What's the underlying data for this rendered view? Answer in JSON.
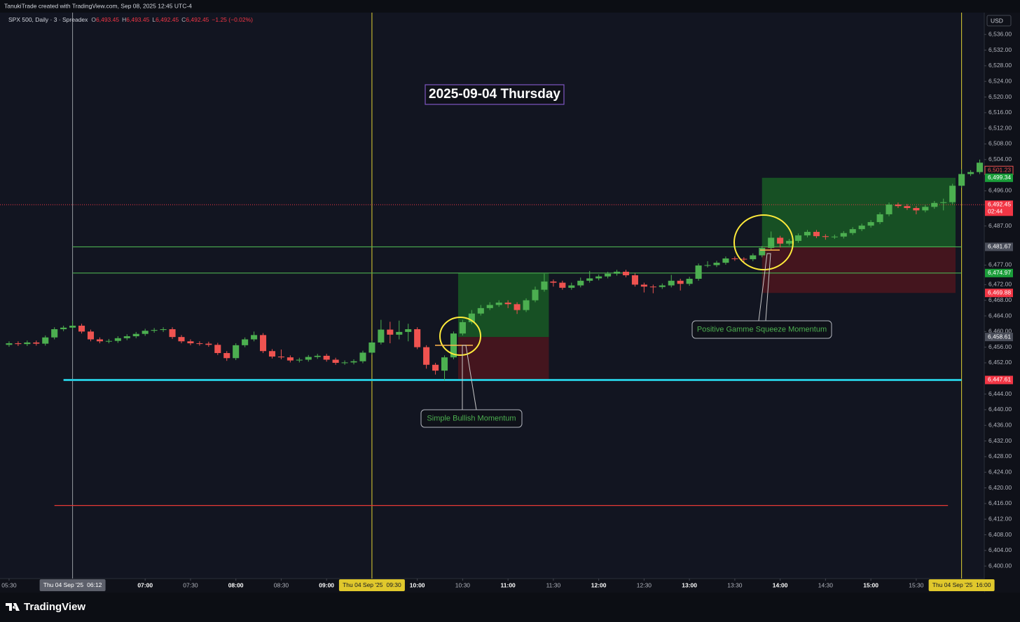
{
  "header": {
    "credit": "TanukiTrade created with TradingView.com, Sep 08, 2025 12:45 UTC-4"
  },
  "footer": {
    "brand": "TradingView"
  },
  "chart_data": {
    "type": "candlestick",
    "title": "2025-09-04 Thursday",
    "legend": {
      "symbol": "SPX 500, Daily · 3 · Spreadex",
      "ohlc": [
        {
          "key": "O",
          "value": "6,493.45"
        },
        {
          "key": "H",
          "value": "6,493.45"
        },
        {
          "key": "L",
          "value": "6,492.45"
        },
        {
          "key": "C",
          "value": "6,492.45"
        }
      ],
      "change": "−1.25 (−0.02%)"
    },
    "currency": "USD",
    "up_color": "#4caf50",
    "down_color": "#ef5350",
    "grid": false,
    "xlim": [
      "05:24",
      "16:15"
    ],
    "xticks": [
      "05:30",
      "07:00",
      "07:30",
      "08:00",
      "08:30",
      "09:00",
      "10:00",
      "10:30",
      "11:00",
      "11:30",
      "12:00",
      "12:30",
      "13:00",
      "13:30",
      "14:00",
      "14:30",
      "15:00",
      "15:30"
    ],
    "ylim": [
      6396.8,
      6541.6
    ],
    "yticks": [
      {
        "value": 6536,
        "label": "6,536.00"
      },
      {
        "value": 6532,
        "label": "6,532.00"
      },
      {
        "value": 6528,
        "label": "6,528.00"
      },
      {
        "value": 6524,
        "label": "6,524.00"
      },
      {
        "value": 6520,
        "label": "6,520.00"
      },
      {
        "value": 6516,
        "label": "6,516.00"
      },
      {
        "value": 6512,
        "label": "6,512.00"
      },
      {
        "value": 6508,
        "label": "6,508.00"
      },
      {
        "value": 6504,
        "label": "6,504.00"
      },
      {
        "value": 6496,
        "label": "6,496.00"
      },
      {
        "value": 6487,
        "label": "6,487.00"
      },
      {
        "value": 6477,
        "label": "6,477.00"
      },
      {
        "value": 6472,
        "label": "6,472.00"
      },
      {
        "value": 6468,
        "label": "6,468.00"
      },
      {
        "value": 6464,
        "label": "6,464.00"
      },
      {
        "value": 6460,
        "label": "6,460.00"
      },
      {
        "value": 6456,
        "label": "6,456.00"
      },
      {
        "value": 6452,
        "label": "6,452.00"
      },
      {
        "value": 6444,
        "label": "6,444.00"
      },
      {
        "value": 6440,
        "label": "6,440.00"
      },
      {
        "value": 6436,
        "label": "6,436.00"
      },
      {
        "value": 6432,
        "label": "6,432.00"
      },
      {
        "value": 6428,
        "label": "6,428.00"
      },
      {
        "value": 6424,
        "label": "6,424.00"
      },
      {
        "value": 6420,
        "label": "6,420.00"
      },
      {
        "value": 6416,
        "label": "6,416.00"
      },
      {
        "value": 6412,
        "label": "6,412.00"
      },
      {
        "value": 6408,
        "label": "6,408.00"
      },
      {
        "value": 6404,
        "label": "6,404.00"
      },
      {
        "value": 6400,
        "label": "6,400.00"
      }
    ],
    "x": [
      "05:30",
      "05:36",
      "05:42",
      "05:48",
      "05:54",
      "06:00",
      "06:06",
      "06:12",
      "06:18",
      "06:24",
      "06:30",
      "06:36",
      "06:42",
      "06:48",
      "06:54",
      "07:00",
      "07:06",
      "07:12",
      "07:18",
      "07:24",
      "07:30",
      "07:36",
      "07:42",
      "07:48",
      "07:54",
      "08:00",
      "08:06",
      "08:12",
      "08:18",
      "08:24",
      "08:30",
      "08:36",
      "08:42",
      "08:48",
      "08:54",
      "09:00",
      "09:06",
      "09:12",
      "09:18",
      "09:24",
      "09:30",
      "09:36",
      "09:42",
      "09:48",
      "09:54",
      "10:00",
      "10:06",
      "10:12",
      "10:18",
      "10:24",
      "10:30",
      "10:36",
      "10:42",
      "10:48",
      "10:54",
      "11:00",
      "11:06",
      "11:12",
      "11:18",
      "11:24",
      "11:30",
      "11:36",
      "11:42",
      "11:48",
      "11:54",
      "12:00",
      "12:06",
      "12:12",
      "12:18",
      "12:24",
      "12:30",
      "12:36",
      "12:42",
      "12:48",
      "12:54",
      "13:00",
      "13:06",
      "13:12",
      "13:18",
      "13:24",
      "13:30",
      "13:36",
      "13:42",
      "13:48",
      "13:54",
      "14:00",
      "14:06",
      "14:12",
      "14:18",
      "14:24",
      "14:30",
      "14:36",
      "14:42",
      "14:48",
      "14:54",
      "15:00",
      "15:06",
      "15:12",
      "15:18",
      "15:24",
      "15:30",
      "15:36",
      "15:42",
      "15:48",
      "15:54",
      "16:00",
      "16:06",
      "16:12"
    ],
    "open": [
      6456.6,
      6457.0,
      6456.8,
      6457.2,
      6456.9,
      6458.5,
      6460.6,
      6461.0,
      6461.5,
      6460.0,
      6458.0,
      6457.5,
      6457.6,
      6458.3,
      6458.8,
      6459.4,
      6460.2,
      6460.4,
      6460.6,
      6458.6,
      6457.5,
      6457.0,
      6456.9,
      6456.6,
      6454.5,
      6453.2,
      6456.5,
      6458.0,
      6459.1,
      6455.0,
      6453.6,
      6453.4,
      6452.6,
      6452.8,
      6453.5,
      6453.8,
      6452.8,
      6452.0,
      6452.1,
      6452.4,
      6454.6,
      6457.2,
      6460.5,
      6459.2,
      6459.9,
      6460.6,
      6456.0,
      6451.5,
      6450.0,
      6453.4,
      6459.5,
      6462.4,
      6464.6,
      6466.0,
      6466.8,
      6467.4,
      6467.0,
      6465.5,
      6468.0,
      6470.7,
      6472.8,
      6472.5,
      6471.2,
      6471.8,
      6473.0,
      6473.6,
      6474.1,
      6474.8,
      6475.3,
      6474.4,
      6472.0,
      6471.5,
      6471.4,
      6471.8,
      6473.0,
      6472.2,
      6473.5,
      6476.9,
      6477.0,
      6477.6,
      6478.7,
      6478.6,
      6478.5,
      6479.5,
      6481.4,
      6484.0,
      6482.5,
      6483.2,
      6484.6,
      6485.5,
      6484.4,
      6484.2,
      6484.3,
      6485.2,
      6486.2,
      6487.1,
      6488.0,
      6490.0,
      6492.5,
      6492.1,
      6491.6,
      6491.0,
      6491.9,
      6492.9,
      6493.1,
      6497.3,
      6500.3,
      6500.8
    ],
    "high": [
      6457.5,
      6457.5,
      6457.7,
      6457.7,
      6459.0,
      6461.1,
      6461.5,
      6462.8,
      6462.0,
      6460.5,
      6458.5,
      6458.1,
      6458.8,
      6459.3,
      6459.9,
      6460.7,
      6460.9,
      6461.1,
      6461.1,
      6459.1,
      6458.0,
      6457.5,
      6457.4,
      6457.1,
      6455.0,
      6457.0,
      6458.5,
      6460.0,
      6459.6,
      6455.5,
      6455.4,
      6453.9,
      6453.3,
      6454.0,
      6454.3,
      6454.3,
      6453.3,
      6452.6,
      6452.9,
      6455.1,
      6457.7,
      6463.0,
      6462.5,
      6462.8,
      6462.0,
      6461.1,
      6456.5,
      6452.0,
      6453.9,
      6460.0,
      6463.0,
      6465.5,
      6466.8,
      6467.5,
      6468.0,
      6468.0,
      6467.5,
      6468.5,
      6471.5,
      6474.8,
      6473.3,
      6473.0,
      6472.5,
      6473.8,
      6475.5,
      6474.6,
      6475.3,
      6475.8,
      6475.8,
      6474.9,
      6472.5,
      6472.0,
      6472.3,
      6474.5,
      6473.5,
      6474.0,
      6477.4,
      6478.0,
      6478.1,
      6479.2,
      6479.2,
      6479.0,
      6480.0,
      6481.9,
      6485.6,
      6484.5,
      6483.7,
      6485.1,
      6486.0,
      6486.0,
      6484.9,
      6484.8,
      6485.7,
      6486.7,
      6487.6,
      6488.5,
      6490.5,
      6493.0,
      6493.0,
      6492.6,
      6492.1,
      6492.4,
      6493.4,
      6494.0,
      6497.8,
      6501.5,
      6501.3,
      6504.0
    ],
    "low": [
      6456.1,
      6456.3,
      6456.3,
      6456.4,
      6456.4,
      6458.0,
      6460.1,
      6460.5,
      6459.5,
      6457.5,
      6457.0,
      6457.0,
      6457.1,
      6457.8,
      6458.3,
      6458.9,
      6459.7,
      6459.9,
      6458.1,
      6457.0,
      6456.5,
      6456.4,
      6456.1,
      6454.0,
      6452.5,
      6452.7,
      6456.0,
      6457.5,
      6454.5,
      6453.1,
      6452.9,
      6452.1,
      6452.1,
      6452.3,
      6453.0,
      6452.3,
      6451.5,
      6451.5,
      6451.6,
      6451.9,
      6454.1,
      6456.7,
      6457.0,
      6458.0,
      6457.5,
      6455.5,
      6450.5,
      6449.0,
      6447.5,
      6452.9,
      6459.0,
      6461.9,
      6464.1,
      6465.5,
      6466.3,
      6466.0,
      6464.5,
      6465.0,
      6467.5,
      6470.2,
      6471.5,
      6470.7,
      6470.7,
      6471.3,
      6472.5,
      6473.1,
      6473.6,
      6474.3,
      6473.9,
      6471.5,
      6470.0,
      6469.8,
      6470.9,
      6471.3,
      6470.5,
      6471.7,
      6473.0,
      6476.4,
      6476.5,
      6477.1,
      6478.1,
      6477.8,
      6478.0,
      6479.0,
      6480.9,
      6481.5,
      6482.0,
      6482.7,
      6484.1,
      6483.9,
      6483.5,
      6483.7,
      6483.8,
      6484.7,
      6485.7,
      6486.6,
      6487.5,
      6489.5,
      6491.6,
      6491.1,
      6490.0,
      6490.5,
      6491.4,
      6491.0,
      6492.6,
      6496.8,
      6499.8,
      6500.3
    ],
    "close": [
      6457.0,
      6456.8,
      6457.2,
      6456.9,
      6458.5,
      6460.6,
      6461.0,
      6461.5,
      6460.0,
      6458.0,
      6457.5,
      6457.6,
      6458.3,
      6458.8,
      6459.4,
      6460.2,
      6460.4,
      6460.6,
      6458.6,
      6457.5,
      6457.0,
      6456.9,
      6456.6,
      6454.5,
      6453.2,
      6456.5,
      6458.0,
      6459.1,
      6455.0,
      6453.6,
      6453.4,
      6452.6,
      6452.8,
      6453.5,
      6453.8,
      6452.8,
      6452.0,
      6452.1,
      6452.4,
      6454.6,
      6457.2,
      6460.5,
      6459.2,
      6459.9,
      6460.6,
      6456.0,
      6451.5,
      6450.0,
      6453.4,
      6459.5,
      6462.4,
      6464.6,
      6466.0,
      6466.8,
      6467.4,
      6467.0,
      6465.5,
      6468.0,
      6470.7,
      6472.8,
      6472.5,
      6471.2,
      6471.8,
      6473.0,
      6473.6,
      6474.1,
      6474.8,
      6475.3,
      6474.4,
      6472.0,
      6471.5,
      6471.4,
      6471.8,
      6473.0,
      6472.2,
      6473.5,
      6476.9,
      6477.0,
      6477.6,
      6478.7,
      6478.6,
      6478.5,
      6479.5,
      6481.4,
      6484.0,
      6482.5,
      6483.2,
      6484.6,
      6485.5,
      6484.4,
      6484.2,
      6484.3,
      6485.2,
      6486.2,
      6487.1,
      6488.0,
      6490.0,
      6492.5,
      6492.1,
      6491.6,
      6491.0,
      6491.9,
      6492.9,
      6493.1,
      6497.3,
      6500.3,
      6500.8,
      6503.2
    ],
    "vlines": [
      {
        "time": "06:12",
        "date": "Thu 04 Sep '25",
        "color": "#9598a1"
      },
      {
        "time": "09:30",
        "date": "Thu 04 Sep '25",
        "color": "#e0d234"
      },
      {
        "time": "16:00",
        "date": "Thu 04 Sep '25",
        "color": "#e0d234"
      }
    ],
    "levels": [
      {
        "value": 6481.67,
        "start": "06:12",
        "end": "16:00",
        "color": "#4caf50"
      },
      {
        "value": 6474.97,
        "start": "06:12",
        "end": "16:00",
        "color": "#4caf50"
      },
      {
        "value": 6447.61,
        "start": "06:06",
        "end": "16:00",
        "color": "#26c6da"
      },
      {
        "value": 6415.5,
        "start": "06:00",
        "end": "15:51",
        "color": "#e53935"
      }
    ],
    "positions": [
      {
        "start": "10:27",
        "end": "11:27",
        "entry": 6458.61,
        "target": 6475.0,
        "stop": 6447.5
      },
      {
        "start": "13:48",
        "end": "15:56",
        "entry": 6481.67,
        "target": 6499.34,
        "stop": 6469.88
      }
    ],
    "annotations": [
      "Simple Bullish Momentum",
      "Positive Gamme Squeeze Momentum"
    ],
    "price_tags": [
      {
        "value": 6501.23,
        "label": "6,501.23",
        "color": "#ef5350",
        "outline": true
      },
      {
        "value": 6499.34,
        "label": "6,499.34",
        "color": "#1b9e3a"
      },
      {
        "value": 6492.45,
        "label": "6,492.45",
        "color": "#f23645",
        "countdown": "02:44"
      },
      {
        "value": 6481.67,
        "label": "6,481.67",
        "color": "#4a4e5a"
      },
      {
        "value": 6474.97,
        "label": "6,474.97",
        "color": "#1b9e3a"
      },
      {
        "value": 6469.88,
        "label": "6,469.88",
        "color": "#f23645"
      },
      {
        "value": 6458.61,
        "label": "6,458.61",
        "color": "#4a4e5a"
      },
      {
        "value": 6447.61,
        "label": "6,447.61",
        "color": "#f23645"
      }
    ]
  }
}
